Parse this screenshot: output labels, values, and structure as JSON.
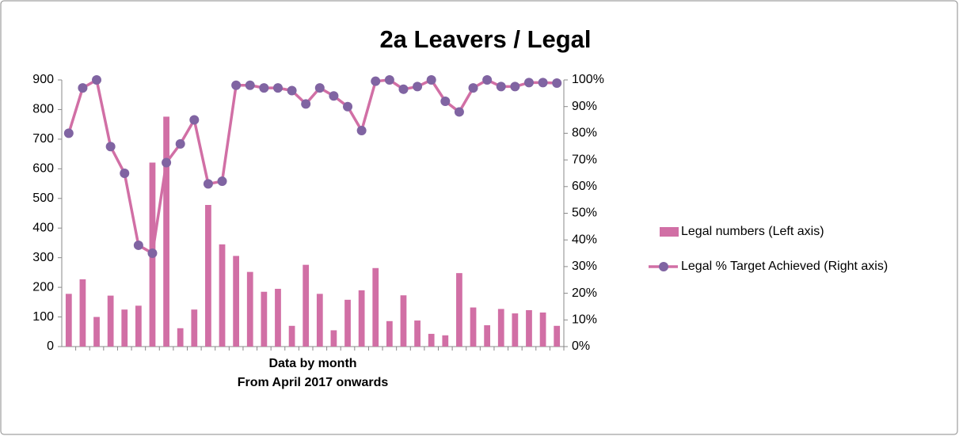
{
  "chart_data": {
    "type": "bar_line",
    "title": "2a Leavers / Legal",
    "x_label": [
      "Data by month",
      "From April 2017 onwards"
    ],
    "categories": [
      null,
      null,
      null,
      null,
      null,
      null,
      null,
      null,
      null,
      null,
      null,
      null,
      null,
      null,
      null,
      null,
      null,
      null,
      null,
      null,
      null,
      null,
      null,
      null,
      null,
      null,
      null,
      null,
      null,
      null,
      null,
      null,
      null,
      null,
      null,
      null
    ],
    "series": [
      {
        "name": "Legal numbers (Left axis)",
        "kind": "bar",
        "color": "#d16fa5",
        "values": [
          178,
          227,
          100,
          172,
          125,
          138,
          621,
          776,
          62,
          125,
          478,
          345,
          306,
          252,
          185,
          195,
          70,
          276,
          178,
          55,
          158,
          190,
          265,
          86,
          173,
          88,
          43,
          38,
          248,
          132,
          72,
          127,
          112,
          123,
          115,
          70
        ]
      },
      {
        "name": "Legal % Target Achieved (Right axis)",
        "kind": "line",
        "axis": "y2",
        "color": "#d16fa5",
        "marker_color": "#8064a2",
        "values": [
          80,
          97,
          100,
          75,
          65,
          38,
          35,
          69,
          76,
          85,
          61,
          62,
          98,
          98,
          97,
          97,
          96,
          91,
          97,
          94,
          90,
          81,
          99.5,
          100,
          96.5,
          97.5,
          100,
          92,
          88,
          97,
          100,
          97.5,
          97.5,
          99,
          99,
          98.8
        ]
      }
    ],
    "ylim": [
      0,
      900
    ],
    "yticks": [
      0,
      100,
      200,
      300,
      400,
      500,
      600,
      700,
      800,
      900
    ],
    "y2lim": [
      0,
      100
    ],
    "y2ticks": [
      {
        "value": 0,
        "label": "0%"
      },
      {
        "value": 10,
        "label": "10%"
      },
      {
        "value": 20,
        "label": "20%"
      },
      {
        "value": 30,
        "label": "30%"
      },
      {
        "value": 40,
        "label": "40%"
      },
      {
        "value": 50,
        "label": "50%"
      },
      {
        "value": 60,
        "label": "60%"
      },
      {
        "value": 70,
        "label": "70%"
      },
      {
        "value": 80,
        "label": "80%"
      },
      {
        "value": 90,
        "label": "90%"
      },
      {
        "value": 100,
        "label": "100%"
      }
    ],
    "legend": "right"
  }
}
